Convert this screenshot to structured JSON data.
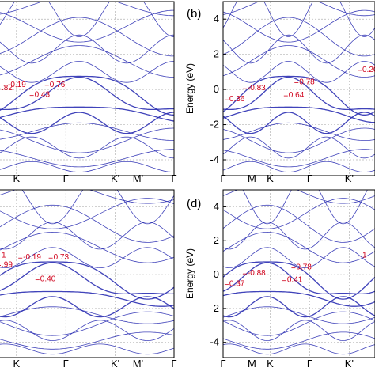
{
  "figure": {
    "band_color": "#2b2fb3",
    "annotation_color": "#d0021b",
    "grid_color": "#b5b5b5"
  },
  "chart_data": [
    {
      "type": "line",
      "panel_label": "",
      "ylabel": "",
      "ylim": [
        -4.9,
        5.0
      ],
      "yticks": [],
      "k_labels": [
        "M",
        "K",
        "Γ",
        "K'",
        "M'",
        "Γ"
      ],
      "k_positions": [
        0.05,
        0.17,
        0.43,
        0.69,
        0.81,
        1.0
      ],
      "grid": true,
      "annotations": [
        {
          "text": "-0.19",
          "x": 0.1,
          "y": 0.15
        },
        {
          "text": ".82",
          "x": 0.0,
          "y": -0.05
        },
        {
          "text": "0.76",
          "x": 0.32,
          "y": 0.15
        },
        {
          "text": "0.43",
          "x": 0.24,
          "y": -0.43
        }
      ]
    },
    {
      "type": "line",
      "panel_label": "(b)",
      "ylabel": "Energy (eV)",
      "ylim": [
        -4.9,
        5.0
      ],
      "yticks": [
        4,
        2,
        0,
        -2,
        -4
      ],
      "k_labels": [
        "Γ",
        "M",
        "K",
        "Γ",
        "K'"
      ],
      "k_positions": [
        0.0,
        0.19,
        0.31,
        0.57,
        0.83
      ],
      "grid": true,
      "annotations": [
        {
          "text": "-0.83",
          "x": 0.13,
          "y": -0.05
        },
        {
          "text": "0.36",
          "x": 0.01,
          "y": -0.68
        },
        {
          "text": "0.78",
          "x": 0.47,
          "y": 0.3
        },
        {
          "text": "0.64",
          "x": 0.4,
          "y": -0.45
        },
        {
          "text": "0.20",
          "x": 1.0,
          "y": 1.0
        }
      ]
    },
    {
      "type": "line",
      "panel_label": "",
      "ylabel": "",
      "ylim": [
        -4.9,
        5.0
      ],
      "yticks": [],
      "k_labels": [
        "M",
        "K",
        "Γ",
        "K'",
        "M'",
        "Γ"
      ],
      "k_positions": [
        0.05,
        0.17,
        0.43,
        0.69,
        0.81,
        1.0
      ],
      "grid": true,
      "annotations": [
        {
          "text": "1",
          "x": 0.0,
          "y": 1.0
        },
        {
          "text": ".99",
          "x": 0.0,
          "y": 0.45
        },
        {
          "text": "-0.19",
          "x": 0.18,
          "y": 0.88
        },
        {
          "text": "0.73",
          "x": 0.34,
          "y": 0.88
        },
        {
          "text": "0.40",
          "x": 0.27,
          "y": -0.4
        }
      ]
    },
    {
      "type": "line",
      "panel_label": "(d)",
      "ylabel": "Energy (eV)",
      "ylim": [
        -4.9,
        5.0
      ],
      "yticks": [
        4,
        2,
        0,
        -2,
        -4
      ],
      "k_labels": [
        "Γ",
        "M",
        "K",
        "Γ",
        "K'"
      ],
      "k_positions": [
        0.0,
        0.19,
        0.31,
        0.57,
        0.83
      ],
      "grid": true,
      "annotations": [
        {
          "text": "-0.88",
          "x": 0.13,
          "y": -0.05
        },
        {
          "text": "0.37",
          "x": 0.01,
          "y": -0.68
        },
        {
          "text": "0.78",
          "x": 0.45,
          "y": 0.3
        },
        {
          "text": "0.41",
          "x": 0.39,
          "y": -0.45
        },
        {
          "text": "1",
          "x": 1.0,
          "y": 1.0
        }
      ]
    }
  ]
}
